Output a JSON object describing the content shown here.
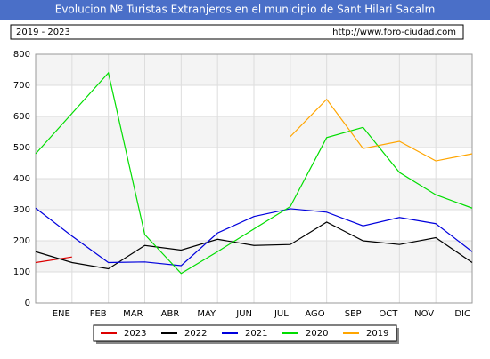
{
  "chart_data": {
    "type": "line",
    "title": "Evolucion Nº Turistas Extranjeros en el municipio de Sant Hilari Sacalm",
    "subtitle": "2019 - 2023",
    "source": "http://www.foro-ciudad.com",
    "categories": [
      null,
      "ENE",
      "FEB",
      "MAR",
      "ABR",
      "MAY",
      "JUN",
      "JUL",
      "AGO",
      "SEP",
      "OCT",
      "NOV",
      "DIC"
    ],
    "series": [
      {
        "name": "2023",
        "color": "#dd0000",
        "values": [
          130,
          148,
          null,
          null,
          null,
          null,
          null,
          null,
          null,
          null,
          null,
          null,
          null
        ]
      },
      {
        "name": "2022",
        "color": "#000000",
        "values": [
          165,
          130,
          110,
          185,
          170,
          205,
          185,
          188,
          260,
          200,
          188,
          210,
          130
        ]
      },
      {
        "name": "2021",
        "color": "#0000dd",
        "values": [
          305,
          215,
          130,
          132,
          120,
          225,
          278,
          303,
          292,
          248,
          275,
          255,
          165
        ]
      },
      {
        "name": "2020",
        "color": "#00dd00",
        "values": [
          480,
          610,
          740,
          220,
          95,
          165,
          238,
          310,
          532,
          565,
          420,
          348,
          305
        ]
      },
      {
        "name": "2019",
        "color": "#ffa500",
        "values": [
          null,
          null,
          null,
          null,
          null,
          null,
          null,
          535,
          655,
          497,
          520,
          457,
          480
        ]
      }
    ],
    "ylim": [
      0,
      800
    ],
    "yticks": [
      0,
      100,
      200,
      300,
      400,
      500,
      600,
      700,
      800
    ],
    "grid": true
  }
}
